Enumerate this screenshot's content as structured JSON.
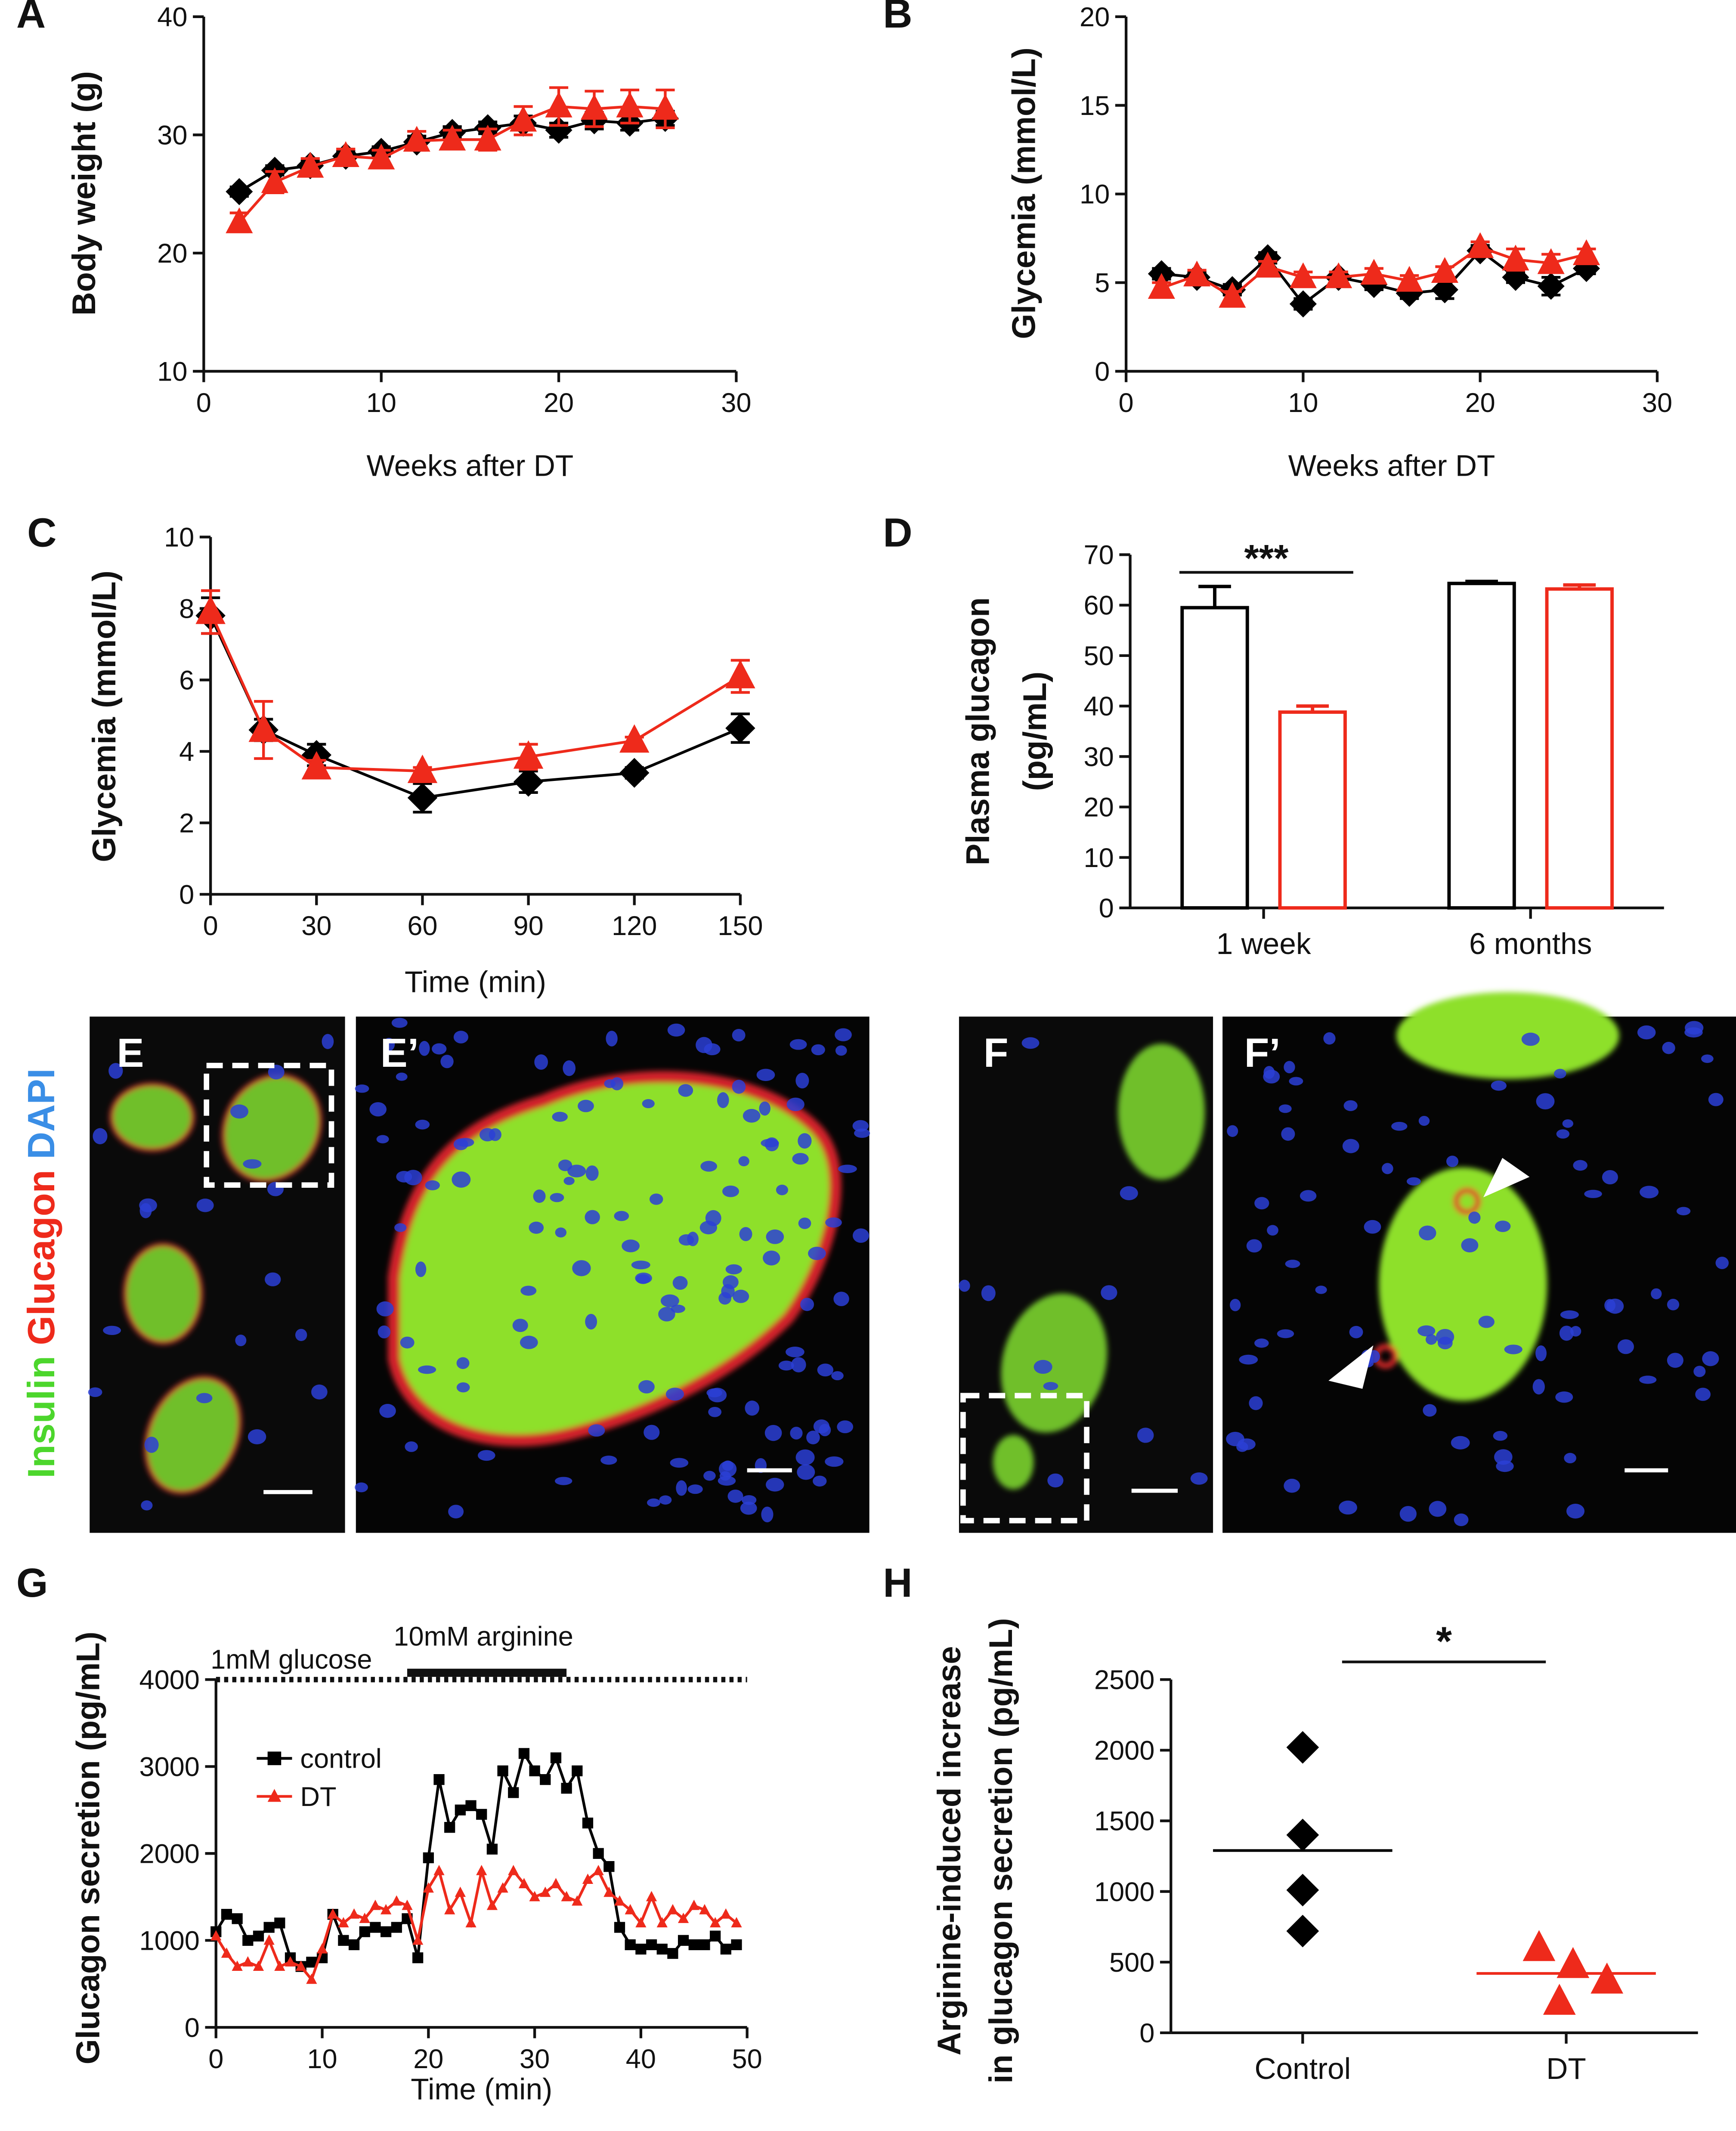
{
  "chart_data": [
    {
      "type": "line",
      "panel": "A",
      "xlabel": "Weeks after DT",
      "ylabel": "Body weight (g)",
      "x": [
        2,
        4,
        6,
        8,
        10,
        12,
        14,
        16,
        18,
        20,
        22,
        24,
        26
      ],
      "xlim": [
        0,
        30
      ],
      "xticks": [
        0,
        10,
        20,
        30
      ],
      "ylim": [
        10,
        40
      ],
      "yticks": [
        10,
        20,
        30,
        40
      ],
      "series": [
        {
          "color": "#000000",
          "marker": "diamond",
          "values": [
            25.2,
            27,
            27.4,
            28.2,
            28.6,
            29.4,
            30.2,
            30.6,
            31,
            30.4,
            31.2,
            31,
            31.4
          ],
          "errors": [
            0.4,
            0.4,
            0.4,
            0.4,
            0.4,
            0.5,
            0.5,
            0.5,
            0.6,
            0.6,
            0.7,
            0.6,
            0.6
          ]
        },
        {
          "color": "#ee2a1b",
          "marker": "triangle",
          "values": [
            22.6,
            26,
            27.3,
            28.2,
            28,
            29.5,
            29.6,
            29.6,
            31.2,
            32.4,
            32.2,
            32.4,
            32.2
          ],
          "errors": [
            0.8,
            0.9,
            0.7,
            0.6,
            0.7,
            0.8,
            0.8,
            0.9,
            1.2,
            1.6,
            1.5,
            1.4,
            1.6
          ]
        }
      ]
    },
    {
      "type": "line",
      "panel": "B",
      "xlabel": "Weeks after DT",
      "ylabel": "Glycemia (mmol/L)",
      "x": [
        2,
        4,
        6,
        8,
        10,
        12,
        14,
        16,
        18,
        20,
        22,
        24,
        26
      ],
      "xlim": [
        0,
        30
      ],
      "xticks": [
        0,
        10,
        20,
        30
      ],
      "ylim": [
        0,
        20
      ],
      "yticks": [
        0,
        5,
        10,
        15,
        20
      ],
      "series": [
        {
          "color": "#000000",
          "marker": "diamond",
          "values": [
            5.5,
            5.3,
            4.6,
            6.4,
            3.8,
            5.3,
            4.9,
            4.4,
            4.6,
            6.8,
            5.3,
            4.8,
            5.8
          ],
          "errors": [
            0.3,
            0.3,
            0.3,
            0.3,
            0.3,
            0.3,
            0.3,
            0.3,
            0.5,
            0.3,
            0.3,
            0.5,
            0.3
          ]
        },
        {
          "color": "#ee2a1b",
          "marker": "triangle",
          "values": [
            4.7,
            5.4,
            4.2,
            5.9,
            5.3,
            5.3,
            5.5,
            5.1,
            5.6,
            7.0,
            6.3,
            6.1,
            6.6
          ],
          "errors": [
            0.3,
            0.3,
            0.3,
            0.3,
            0.3,
            0.3,
            0.3,
            0.3,
            0.3,
            0.3,
            0.6,
            0.5,
            0.3
          ]
        }
      ]
    },
    {
      "type": "line",
      "panel": "C",
      "xlabel": "Time (min)",
      "ylabel": "Glycemia (mmol/L)",
      "x": [
        0,
        15,
        30,
        60,
        90,
        120,
        150
      ],
      "xlim": [
        0,
        150
      ],
      "xticks": [
        0,
        30,
        60,
        90,
        120,
        150
      ],
      "ylim": [
        0,
        10
      ],
      "yticks": [
        0,
        2,
        4,
        6,
        8,
        10
      ],
      "series": [
        {
          "color": "#000000",
          "marker": "diamond",
          "values": [
            7.8,
            4.6,
            3.9,
            2.7,
            3.15,
            3.4,
            4.65
          ],
          "errors": [
            0.5,
            0.3,
            0.3,
            0.4,
            0.3,
            0.15,
            0.4
          ]
        },
        {
          "color": "#ee2a1b",
          "marker": "triangle",
          "values": [
            7.9,
            4.6,
            3.55,
            3.45,
            3.85,
            4.3,
            6.1
          ],
          "errors": [
            0.6,
            0.8,
            0.2,
            0.1,
            0.35,
            0.1,
            0.45
          ]
        }
      ]
    },
    {
      "type": "bar",
      "panel": "D",
      "ylabel": [
        "Plasma glucagon",
        "(pg/mL)"
      ],
      "categories": [
        "1 week",
        "6 months"
      ],
      "ylim": [
        0,
        70
      ],
      "yticks": [
        0,
        10,
        20,
        30,
        40,
        50,
        60,
        70
      ],
      "significance": "***",
      "series": [
        {
          "color": "#000000",
          "values": [
            59.5,
            64.3
          ],
          "errors": [
            4.2,
            0.4
          ]
        },
        {
          "color": "#ee2a1b",
          "values": [
            38.8,
            63.2
          ],
          "errors": [
            1.2,
            0.8
          ]
        }
      ]
    },
    {
      "type": "line",
      "panel": "G",
      "xlabel": "Time (min)",
      "ylabel": "Glucagon secretion (pg/mL)",
      "x": [
        0,
        1,
        2,
        3,
        4,
        5,
        6,
        7,
        8,
        9,
        10,
        11,
        12,
        13,
        14,
        15,
        16,
        17,
        18,
        19,
        20,
        21,
        22,
        23,
        24,
        25,
        26,
        27,
        28,
        29,
        30,
        31,
        32,
        33,
        34,
        35,
        36,
        37,
        38,
        39,
        40,
        41,
        42,
        43,
        44,
        45,
        46,
        47,
        48,
        49
      ],
      "xlim": [
        0,
        50
      ],
      "xticks": [
        0,
        10,
        20,
        30,
        40,
        50
      ],
      "ylim": [
        0,
        4000
      ],
      "yticks": [
        0,
        1000,
        2000,
        3000,
        4000
      ],
      "legend": "upper left",
      "treatments": [
        {
          "text": "1mM glucose",
          "start": 0,
          "end": 50,
          "style": "dotted"
        },
        {
          "text": "10mM arginine",
          "start": 18,
          "end": 33,
          "style": "solid"
        }
      ],
      "series": [
        {
          "name": "control",
          "color": "#000000",
          "marker": "square",
          "values": [
            1100,
            1300,
            1250,
            1000,
            1050,
            1150,
            1200,
            800,
            700,
            750,
            800,
            1300,
            1000,
            950,
            1100,
            1150,
            1100,
            1150,
            1250,
            800,
            1950,
            2850,
            2300,
            2500,
            2550,
            2450,
            2050,
            2950,
            2700,
            3150,
            2950,
            2850,
            3100,
            2750,
            2950,
            2350,
            2000,
            1850,
            1150,
            950,
            900,
            950,
            900,
            850,
            1000,
            950,
            950,
            1050,
            900,
            950
          ]
        },
        {
          "name": "DT",
          "color": "#ee2a1b",
          "marker": "triangle",
          "values": [
            1050,
            850,
            700,
            750,
            700,
            1000,
            700,
            750,
            700,
            550,
            900,
            1300,
            1200,
            1300,
            1250,
            1400,
            1350,
            1450,
            1400,
            1000,
            1600,
            1800,
            1350,
            1550,
            1200,
            1800,
            1400,
            1600,
            1800,
            1650,
            1500,
            1550,
            1650,
            1500,
            1450,
            1700,
            1800,
            1550,
            1450,
            1350,
            1200,
            1500,
            1200,
            1350,
            1250,
            1400,
            1350,
            1200,
            1300,
            1200
          ]
        }
      ]
    },
    {
      "type": "strip",
      "panel": "H",
      "ylabel": [
        "Arginine-induced increase",
        "in glucagon secretion (pg/mL)"
      ],
      "categories": [
        "Control",
        "DT"
      ],
      "ylim": [
        0,
        2500
      ],
      "yticks": [
        0,
        500,
        1000,
        1500,
        2000,
        2500
      ],
      "significance": "*",
      "series": [
        {
          "color": "#000000",
          "marker": "diamond",
          "values": [
            2020,
            1400,
            1010,
            720
          ],
          "mean": 1290
        },
        {
          "color": "#ee2a1b",
          "marker": "triangle",
          "values": [
            600,
            480,
            220,
            370
          ],
          "mean": 420
        }
      ]
    }
  ],
  "images": {
    "stain": [
      "Insulin",
      "Glucagon",
      "DAPI"
    ],
    "panels": [
      "E",
      "E’",
      "F",
      "F’"
    ]
  }
}
